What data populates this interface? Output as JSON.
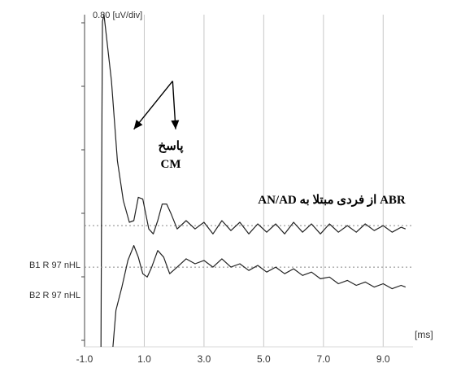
{
  "chart_data": {
    "type": "line",
    "scale_label": "0.80 [uV/div]",
    "x_unit_label": "[ms]",
    "x_ticks": [
      -1.0,
      1.0,
      3.0,
      5.0,
      7.0,
      9.0
    ],
    "x_tick_labels": [
      "-1.0",
      "1.0",
      "3.0",
      "5.0",
      "7.0",
      "9.0"
    ],
    "xlim": [
      -1.0,
      10.0
    ],
    "ylim": [
      -5.0,
      5.0
    ],
    "grid": "vertical",
    "annotations": {
      "response_fa": "پاسخ",
      "response_cm": "CM",
      "caption": "ABR از فردی مبتلا به AN/AD"
    },
    "series": [
      {
        "name": "B1 R 97 nHL",
        "baseline": -1.35,
        "points": [
          [
            -0.45,
            -5.0
          ],
          [
            -0.42,
            1.5
          ],
          [
            -0.4,
            4.8
          ],
          [
            -0.35,
            5.0
          ],
          [
            -0.1,
            3.0
          ],
          [
            0.1,
            0.6
          ],
          [
            0.3,
            -0.6
          ],
          [
            0.5,
            -1.25
          ],
          [
            0.65,
            -1.2
          ],
          [
            0.8,
            -0.5
          ],
          [
            0.95,
            -0.55
          ],
          [
            1.15,
            -1.45
          ],
          [
            1.3,
            -1.6
          ],
          [
            1.45,
            -1.2
          ],
          [
            1.6,
            -0.7
          ],
          [
            1.75,
            -0.7
          ],
          [
            1.9,
            -1.0
          ],
          [
            2.1,
            -1.45
          ],
          [
            2.4,
            -1.2
          ],
          [
            2.7,
            -1.45
          ],
          [
            3.0,
            -1.25
          ],
          [
            3.3,
            -1.6
          ],
          [
            3.6,
            -1.2
          ],
          [
            3.9,
            -1.5
          ],
          [
            4.2,
            -1.25
          ],
          [
            4.5,
            -1.6
          ],
          [
            4.8,
            -1.3
          ],
          [
            5.1,
            -1.55
          ],
          [
            5.4,
            -1.3
          ],
          [
            5.7,
            -1.6
          ],
          [
            6.0,
            -1.25
          ],
          [
            6.3,
            -1.55
          ],
          [
            6.6,
            -1.3
          ],
          [
            6.9,
            -1.6
          ],
          [
            7.2,
            -1.3
          ],
          [
            7.5,
            -1.55
          ],
          [
            7.8,
            -1.35
          ],
          [
            8.1,
            -1.55
          ],
          [
            8.4,
            -1.3
          ],
          [
            8.7,
            -1.5
          ],
          [
            9.0,
            -1.35
          ],
          [
            9.3,
            -1.55
          ],
          [
            9.6,
            -1.4
          ],
          [
            9.75,
            -1.45
          ]
        ]
      },
      {
        "name": "B2 R 97 nHL",
        "baseline": -2.6,
        "points": [
          [
            -0.05,
            -5.0
          ],
          [
            0.05,
            -3.9
          ],
          [
            0.25,
            -3.2
          ],
          [
            0.45,
            -2.4
          ],
          [
            0.65,
            -1.95
          ],
          [
            0.8,
            -2.3
          ],
          [
            0.95,
            -2.8
          ],
          [
            1.1,
            -2.9
          ],
          [
            1.25,
            -2.6
          ],
          [
            1.45,
            -2.1
          ],
          [
            1.65,
            -2.3
          ],
          [
            1.85,
            -2.8
          ],
          [
            2.1,
            -2.6
          ],
          [
            2.4,
            -2.35
          ],
          [
            2.7,
            -2.5
          ],
          [
            3.0,
            -2.4
          ],
          [
            3.3,
            -2.6
          ],
          [
            3.6,
            -2.35
          ],
          [
            3.9,
            -2.6
          ],
          [
            4.2,
            -2.5
          ],
          [
            4.5,
            -2.7
          ],
          [
            4.8,
            -2.55
          ],
          [
            5.1,
            -2.75
          ],
          [
            5.4,
            -2.6
          ],
          [
            5.7,
            -2.8
          ],
          [
            6.0,
            -2.65
          ],
          [
            6.3,
            -2.85
          ],
          [
            6.6,
            -2.75
          ],
          [
            6.9,
            -2.95
          ],
          [
            7.2,
            -2.9
          ],
          [
            7.5,
            -3.1
          ],
          [
            7.8,
            -3.0
          ],
          [
            8.1,
            -3.15
          ],
          [
            8.4,
            -3.05
          ],
          [
            8.7,
            -3.2
          ],
          [
            9.0,
            -3.1
          ],
          [
            9.3,
            -3.25
          ],
          [
            9.6,
            -3.15
          ],
          [
            9.75,
            -3.2
          ]
        ]
      }
    ],
    "arrows": [
      {
        "from": [
          1.95,
          3.0
        ],
        "to": [
          0.65,
          1.55
        ]
      },
      {
        "from": [
          1.95,
          3.0
        ],
        "to": [
          2.05,
          1.55
        ]
      }
    ]
  }
}
